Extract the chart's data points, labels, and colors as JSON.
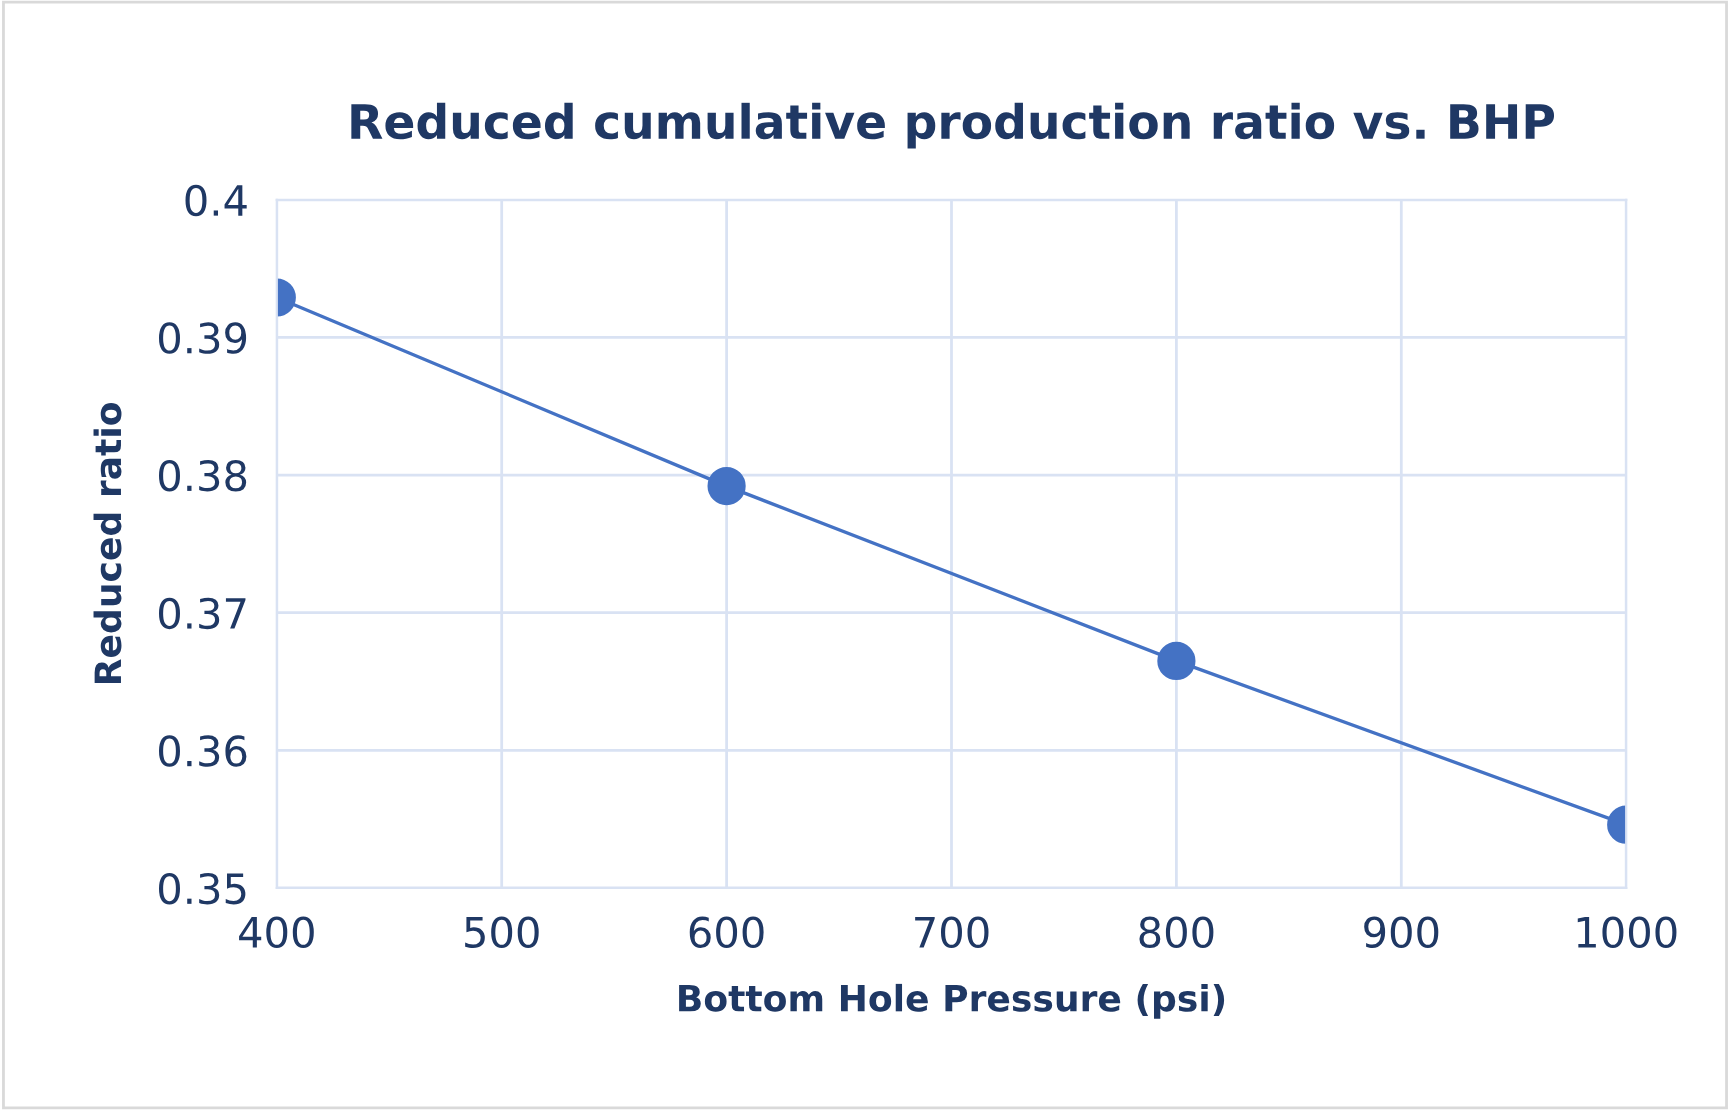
{
  "chart_data": {
    "type": "line",
    "title": "Reduced cumulative production ratio vs. BHP",
    "xlabel": "Bottom Hole Pressure (psi)",
    "ylabel": "Reduced ratio",
    "x": [
      400,
      600,
      800,
      1000
    ],
    "series": [
      {
        "color": "#4472c4",
        "values": [
          0.3929,
          0.3792,
          0.3665,
          0.3546
        ]
      }
    ],
    "xlim": [
      400,
      1000
    ],
    "xticks": [
      400,
      500,
      600,
      700,
      800,
      900,
      1000
    ],
    "ylim": [
      0.35,
      0.4
    ],
    "yticks": [
      {
        "value": 0.35,
        "label": "0.35"
      },
      {
        "value": 0.36,
        "label": "0.36"
      },
      {
        "value": 0.37,
        "label": "0.37"
      },
      {
        "value": 0.38,
        "label": "0.38"
      },
      {
        "value": 0.39,
        "label": "0.39"
      },
      {
        "value": 0.4,
        "label": "0.4"
      }
    ],
    "grid": true,
    "legend": false,
    "marker": "circle",
    "line_style": "solid"
  }
}
